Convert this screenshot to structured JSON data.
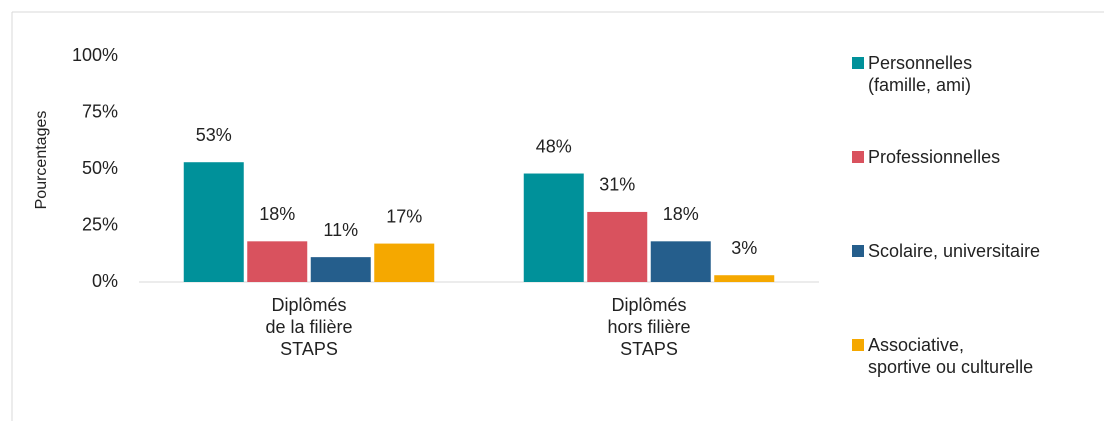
{
  "chart_data": {
    "type": "bar",
    "y_label": "Pourcentages",
    "categories": [
      "Diplômés\nde la filière\nSTAPS",
      "Diplômés\nhors filière\nSTAPS"
    ],
    "series": [
      {
        "name": "Personnelles\n(famille, ami)",
        "color": "#00919a",
        "values": [
          53,
          48
        ],
        "value_labels": [
          "53%",
          "48%"
        ]
      },
      {
        "name": "Professionnelles",
        "color": "#d9525e",
        "values": [
          18,
          31
        ],
        "value_labels": [
          "18%",
          "31%"
        ]
      },
      {
        "name": "Scolaire, universitaire",
        "color": "#255e8c",
        "values": [
          11,
          18
        ],
        "value_labels": [
          "11%",
          "18%"
        ]
      },
      {
        "name": "Associative,\nsportive ou culturelle",
        "color": "#f5a800",
        "values": [
          17,
          3
        ],
        "value_labels": [
          "17%",
          "3%"
        ]
      }
    ],
    "ylim": [
      0,
      100
    ],
    "yticks": [
      {
        "value": 0,
        "label": "0%"
      },
      {
        "value": 25,
        "label": "25%"
      },
      {
        "value": 50,
        "label": "50%"
      },
      {
        "value": 75,
        "label": "75%"
      },
      {
        "value": 100,
        "label": "100%"
      }
    ],
    "legend": "right"
  }
}
